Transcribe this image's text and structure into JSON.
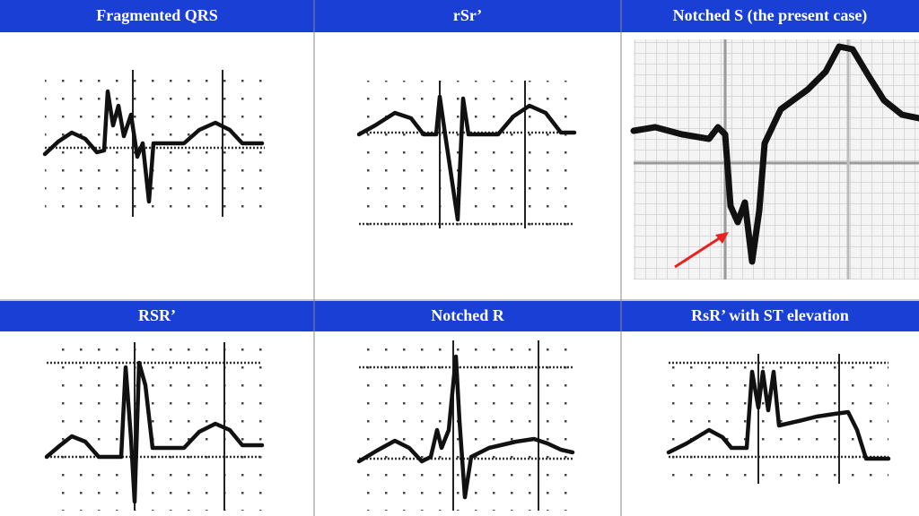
{
  "panels": [
    {
      "title": "Fragmented QRS"
    },
    {
      "title": "rSr’"
    },
    {
      "title": "Notched S (the present case)"
    },
    {
      "title": "RSR’"
    },
    {
      "title": "Notched R"
    },
    {
      "title": "RsR’ with ST elevation"
    }
  ]
}
